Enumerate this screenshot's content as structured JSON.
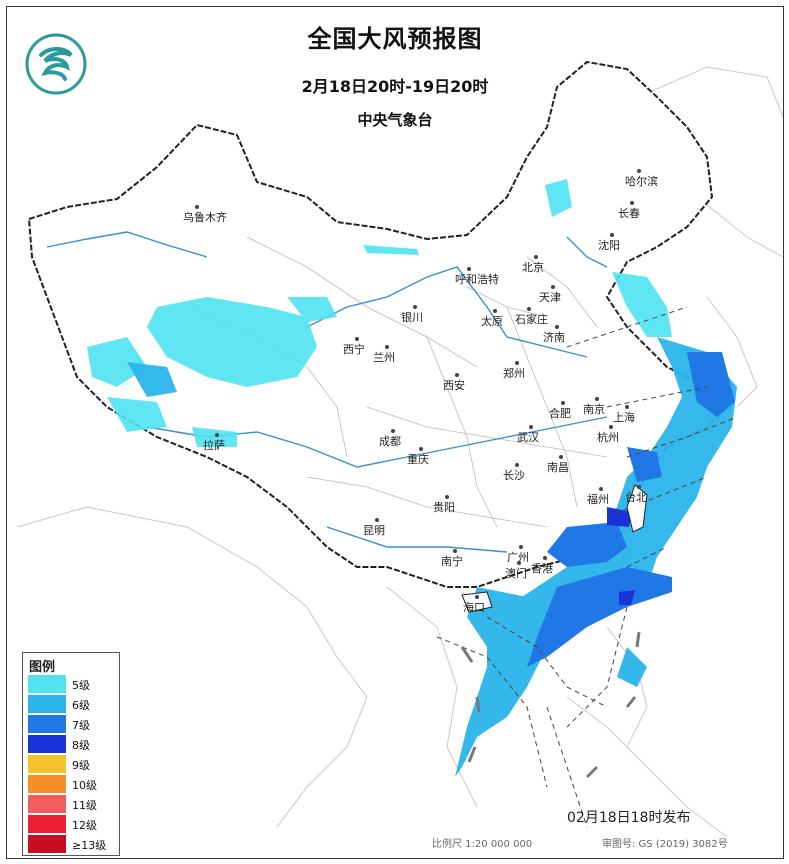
{
  "header": {
    "title": "全国大风预报图",
    "period": "2月18日20时-19日20时",
    "agency": "中央气象台"
  },
  "cities": [
    {
      "id": "urumqi",
      "name": "乌鲁木齐"
    },
    {
      "id": "harbin",
      "name": "哈尔滨"
    },
    {
      "id": "changchun",
      "name": "长春"
    },
    {
      "id": "shenyang",
      "name": "沈阳"
    },
    {
      "id": "beijing",
      "name": "北京"
    },
    {
      "id": "tianjin",
      "name": "天津"
    },
    {
      "id": "hohhot",
      "name": "呼和浩特"
    },
    {
      "id": "taiyuan",
      "name": "太原"
    },
    {
      "id": "shijiazhuang",
      "name": "石家庄"
    },
    {
      "id": "jinan",
      "name": "济南"
    },
    {
      "id": "yinchuan",
      "name": "银川"
    },
    {
      "id": "xining",
      "name": "西宁"
    },
    {
      "id": "lanzhou",
      "name": "兰州"
    },
    {
      "id": "zhengzhou",
      "name": "郑州"
    },
    {
      "id": "xian",
      "name": "西安"
    },
    {
      "id": "hefei",
      "name": "合肥"
    },
    {
      "id": "nanjing",
      "name": "南京"
    },
    {
      "id": "shanghai",
      "name": "上海"
    },
    {
      "id": "hangzhou",
      "name": "杭州"
    },
    {
      "id": "wuhan",
      "name": "武汉"
    },
    {
      "id": "chengdu",
      "name": "成都"
    },
    {
      "id": "lhasa",
      "name": "拉萨"
    },
    {
      "id": "chongqing",
      "name": "重庆"
    },
    {
      "id": "changsha",
      "name": "长沙"
    },
    {
      "id": "nanchang",
      "name": "南昌"
    },
    {
      "id": "fuzhou",
      "name": "福州"
    },
    {
      "id": "taibei",
      "name": "台北"
    },
    {
      "id": "guiyang",
      "name": "贵阳"
    },
    {
      "id": "kunming",
      "name": "昆明"
    },
    {
      "id": "guangzhou",
      "name": "广州"
    },
    {
      "id": "hongkong",
      "name": "香港"
    },
    {
      "id": "macau",
      "name": "澳门"
    },
    {
      "id": "nanning",
      "name": "南宁"
    },
    {
      "id": "haikou",
      "name": "海口"
    }
  ],
  "legend": {
    "title": "图例",
    "items": [
      {
        "label": "5级",
        "color": "#4fe3f2"
      },
      {
        "label": "6级",
        "color": "#2ab4ea"
      },
      {
        "label": "7级",
        "color": "#1f78e6"
      },
      {
        "label": "8级",
        "color": "#1834d8"
      },
      {
        "label": "9级",
        "color": "#f7c32b"
      },
      {
        "label": "10级",
        "color": "#f78f28"
      },
      {
        "label": "11级",
        "color": "#f25d5d"
      },
      {
        "label": "12级",
        "color": "#ee1d36"
      },
      {
        "label": "≥13级",
        "color": "#c70e25"
      }
    ]
  },
  "footer": {
    "issued": "02月18日18时发布",
    "scale": "比例尺 1:20 000 000",
    "review": "审图号: GS (2019) 3082号"
  },
  "colors": {
    "border": "#222222",
    "river": "#3a8fd0",
    "sea_label": "#3a8fd0"
  }
}
